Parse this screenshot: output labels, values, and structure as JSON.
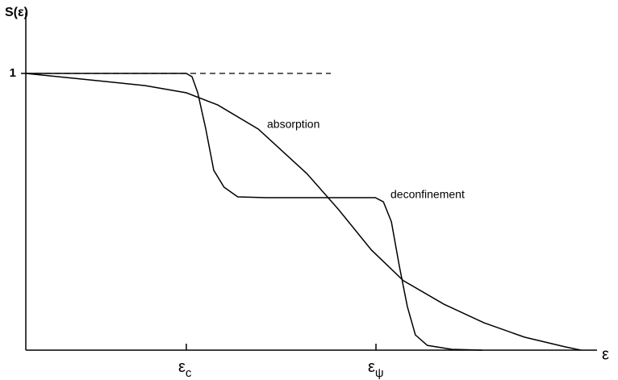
{
  "chart_data": {
    "type": "line",
    "y_label": "S(ε)",
    "x_label": "ε",
    "xlim": [
      0,
      100
    ],
    "ylim": [
      0,
      1.22
    ],
    "xticks": [
      {
        "value": 28.1,
        "label": "εc"
      },
      {
        "value": 61.3,
        "label": "εψ"
      }
    ],
    "yticks": [
      1
    ],
    "grid": false,
    "series": [
      {
        "name": "deconfinement",
        "color": "#000000",
        "x": [
          0,
          28.1,
          29.1,
          30.1,
          31.5,
          32.9,
          34.7,
          37.1,
          42.1,
          61.2,
          62.6,
          64.0,
          65.4,
          66.8,
          68.2,
          70.3,
          74.6,
          79.9
        ],
        "values": [
          1,
          1,
          0.988,
          0.93,
          0.8,
          0.65,
          0.589,
          0.554,
          0.551,
          0.551,
          0.536,
          0.464,
          0.303,
          0.157,
          0.055,
          0.017,
          0.003,
          0
        ]
      },
      {
        "name": "absorption",
        "color": "#000000",
        "x": [
          0,
          9.6,
          20.9,
          28.1,
          33.6,
          40.7,
          49.2,
          54.8,
          60.5,
          66.1,
          73.2,
          80.2,
          87.3,
          94.4,
          97.2
        ],
        "values": [
          1,
          0.98,
          0.956,
          0.93,
          0.886,
          0.799,
          0.638,
          0.507,
          0.362,
          0.251,
          0.166,
          0.099,
          0.047,
          0.012,
          0
        ]
      }
    ],
    "reference_line": {
      "color": "#000000",
      "dashed": true,
      "x": [
        0,
        53.4
      ],
      "values": [
        1,
        1
      ]
    }
  }
}
